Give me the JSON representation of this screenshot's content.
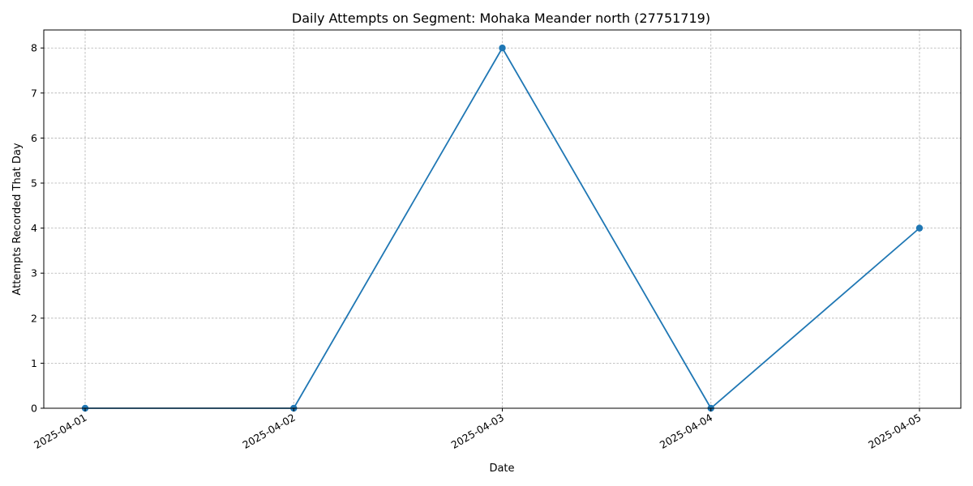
{
  "chart_data": {
    "type": "line",
    "title": "Daily Attempts on Segment: Mohaka Meander north (27751719)",
    "xlabel": "Date",
    "ylabel": "Attempts Recorded That Day",
    "x": [
      "2025-04-01",
      "2025-04-02",
      "2025-04-03",
      "2025-04-04",
      "2025-04-05"
    ],
    "series": [
      {
        "values": [
          0,
          0,
          8,
          0,
          4
        ]
      }
    ],
    "ylim": [
      0,
      8.4
    ],
    "yticks": [
      0,
      1,
      2,
      3,
      4,
      5,
      6,
      7,
      8
    ],
    "grid": true,
    "markers": true,
    "colors": {
      "series": "#1f77b4",
      "grid": "#b0b0b0",
      "axis": "#000000"
    }
  }
}
